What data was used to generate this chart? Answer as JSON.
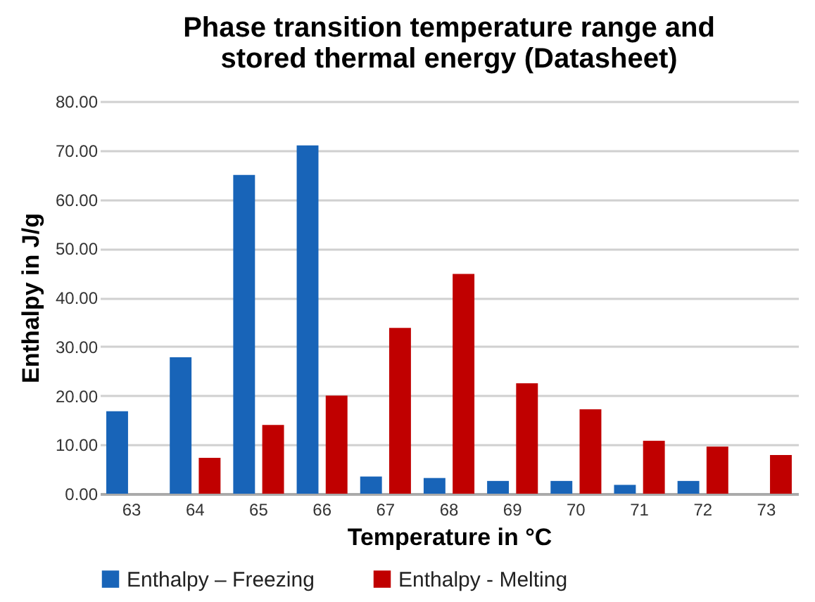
{
  "chart_data": {
    "type": "bar",
    "title": "Phase transition temperature range and stored thermal energy (Datasheet)",
    "xlabel": "Temperature in °C",
    "ylabel": "Enthalpy in J/g",
    "categories": [
      "63",
      "64",
      "65",
      "66",
      "67",
      "68",
      "69",
      "70",
      "71",
      "72",
      "73"
    ],
    "series": [
      {
        "name": "Enthalpy – Freezing",
        "color": "#1864b8",
        "values": [
          16.8,
          27.8,
          65,
          71,
          3.5,
          3.2,
          2.6,
          2.6,
          1.8,
          2.6,
          null
        ]
      },
      {
        "name": "Enthalpy - Melting",
        "color": "#c00000",
        "values": [
          null,
          7.3,
          14,
          20,
          33.8,
          44.8,
          22.5,
          17.2,
          10.8,
          9.6,
          7.9
        ]
      }
    ],
    "ylim": [
      0,
      80
    ],
    "yticks": [
      {
        "value": 0,
        "label": "0.00"
      },
      {
        "value": 10,
        "label": "10.00"
      },
      {
        "value": 20,
        "label": "20.00"
      },
      {
        "value": 30,
        "label": "30.00"
      },
      {
        "value": 40,
        "label": "40.00"
      },
      {
        "value": 50,
        "label": "50.00"
      },
      {
        "value": 60,
        "label": "60.00"
      },
      {
        "value": 70,
        "label": "70.00"
      },
      {
        "value": 80,
        "label": "80.00"
      }
    ],
    "grid": "y",
    "legend": "bottom"
  }
}
